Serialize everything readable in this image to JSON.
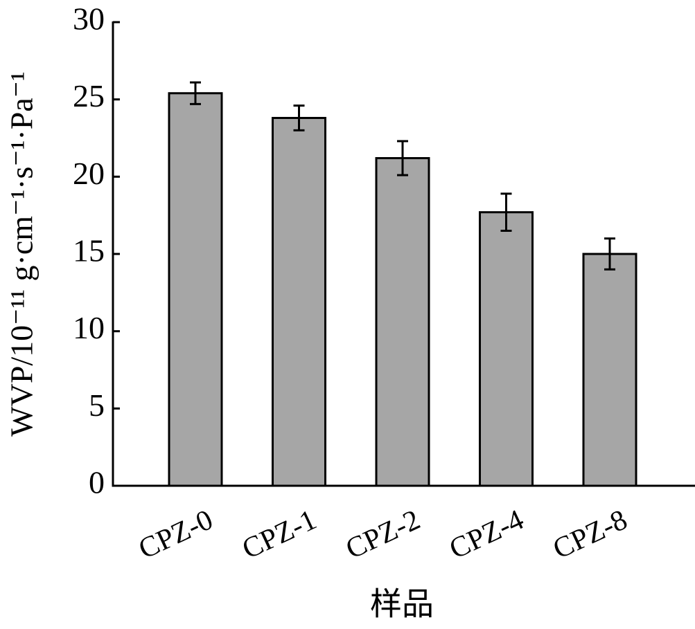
{
  "chart_data": {
    "type": "bar",
    "x_label": "样品",
    "y_label": "WVP/10⁻¹¹ g·cm⁻¹·s⁻¹·Pa⁻¹",
    "categories": [
      "CPZ-0",
      "CPZ-1",
      "CPZ-2",
      "CPZ-4",
      "CPZ-8"
    ],
    "values": [
      25.4,
      23.8,
      21.2,
      17.7,
      15.0
    ],
    "errors": [
      0.7,
      0.8,
      1.1,
      1.2,
      1.0
    ],
    "color": "#a6a6a6",
    "ylim": [
      0,
      30
    ],
    "yticks": [
      0,
      5,
      10,
      15,
      20,
      25,
      30
    ],
    "grid": false
  }
}
